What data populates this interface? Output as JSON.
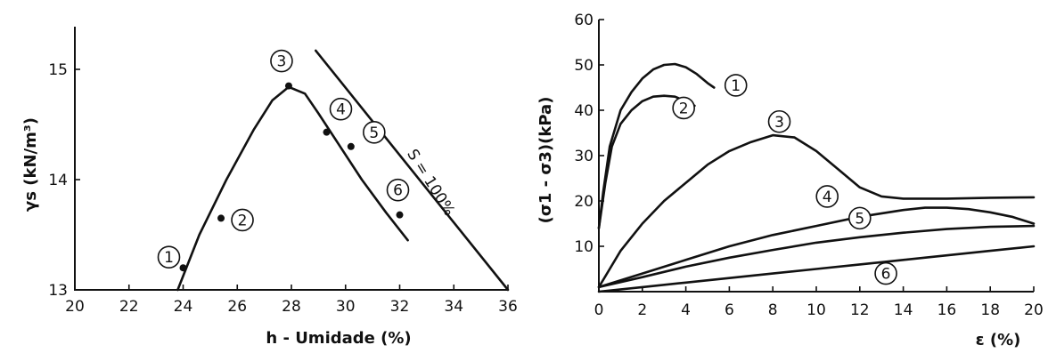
{
  "chart_data": [
    {
      "type": "scatter",
      "xlabel": "h - Umidade (%)",
      "ylabel": "γs (kN/m³)",
      "xlim": [
        20,
        36
      ],
      "ylim": [
        13,
        15.4
      ],
      "x_ticks": [
        "20",
        "22",
        "24",
        "26",
        "28",
        "30",
        "32",
        "34",
        "36"
      ],
      "y_ticks": [
        "13",
        "14",
        "15"
      ],
      "x_tick_values": [
        20,
        22,
        24,
        26,
        28,
        30,
        32,
        34,
        36
      ],
      "y_tick_values": [
        13,
        14,
        15
      ],
      "points": [
        {
          "label": "1",
          "x": 24.0,
          "y": 13.2
        },
        {
          "label": "2",
          "x": 25.4,
          "y": 13.65
        },
        {
          "label": "3",
          "x": 27.9,
          "y": 14.85
        },
        {
          "label": "4",
          "x": 29.3,
          "y": 14.43
        },
        {
          "label": "5",
          "x": 30.2,
          "y": 14.3
        },
        {
          "label": "6",
          "x": 32.0,
          "y": 13.68
        }
      ],
      "compaction_curve": [
        [
          23.8,
          13.0
        ],
        [
          24.6,
          13.5
        ],
        [
          25.6,
          14.0
        ],
        [
          26.6,
          14.45
        ],
        [
          27.3,
          14.72
        ],
        [
          27.9,
          14.84
        ],
        [
          28.5,
          14.78
        ],
        [
          29.0,
          14.6
        ],
        [
          29.8,
          14.3
        ],
        [
          30.6,
          14.0
        ],
        [
          31.5,
          13.7
        ],
        [
          32.3,
          13.45
        ]
      ],
      "saturation_line": {
        "label": "S = 100%",
        "points": [
          [
            28.9,
            15.17
          ],
          [
            36.0,
            13.0
          ]
        ]
      }
    },
    {
      "type": "line",
      "xlabel": "ε (%)",
      "ylabel": "(σ1 - σ3)(kPa)",
      "xlim": [
        0,
        20
      ],
      "ylim": [
        0,
        60
      ],
      "x_ticks": [
        "0",
        "2",
        "4",
        "6",
        "8",
        "10",
        "12",
        "14",
        "16",
        "18",
        "20"
      ],
      "y_ticks": [
        "10",
        "20",
        "30",
        "40",
        "50",
        "60"
      ],
      "x_tick_values": [
        0,
        2,
        4,
        6,
        8,
        10,
        12,
        14,
        16,
        18,
        20
      ],
      "y_tick_values": [
        10,
        20,
        30,
        40,
        50,
        60
      ],
      "series": [
        {
          "label": "1",
          "x": [
            0,
            0.2,
            0.5,
            1.0,
            1.5,
            2.0,
            2.5,
            3.0,
            3.5,
            4.0,
            4.5,
            5.0,
            5.3
          ],
          "y": [
            14,
            22,
            32,
            40,
            44,
            47,
            49,
            50,
            50.2,
            49.5,
            48,
            46,
            45
          ]
        },
        {
          "label": "2",
          "x": [
            0,
            0.3,
            0.6,
            1.0,
            1.5,
            2.0,
            2.5,
            3.0,
            3.5,
            4.0,
            4.4
          ],
          "y": [
            14,
            24,
            32,
            37,
            40,
            42,
            43,
            43.2,
            43,
            42,
            41
          ]
        },
        {
          "label": "3",
          "x": [
            0,
            0.5,
            1,
            2,
            3,
            4,
            5,
            6,
            7,
            8,
            9,
            10,
            11,
            12,
            13,
            14,
            16,
            18,
            20
          ],
          "y": [
            1,
            5,
            9,
            15,
            20,
            24,
            28,
            31,
            33,
            34.5,
            34,
            31,
            27,
            23,
            21,
            20.5,
            20.5,
            20.7,
            20.8
          ]
        },
        {
          "label": "4",
          "x": [
            0,
            2,
            4,
            6,
            8,
            10,
            12,
            14,
            15,
            16,
            17,
            18,
            19,
            20
          ],
          "y": [
            1,
            4,
            7,
            10,
            12.5,
            14.5,
            16.5,
            18,
            18.5,
            18.5,
            18.2,
            17.5,
            16.5,
            15
          ]
        },
        {
          "label": "5",
          "x": [
            0,
            2,
            4,
            6,
            8,
            10,
            12,
            14,
            16,
            18,
            20
          ],
          "y": [
            1,
            3.2,
            5.5,
            7.5,
            9.2,
            10.8,
            12,
            13,
            13.8,
            14.3,
            14.5
          ]
        },
        {
          "label": "6",
          "x": [
            0,
            2,
            4,
            6,
            8,
            10,
            12,
            14,
            16,
            18,
            20
          ],
          "y": [
            0,
            1,
            2,
            3,
            4,
            5,
            6,
            7,
            8,
            9,
            10
          ]
        }
      ]
    }
  ]
}
